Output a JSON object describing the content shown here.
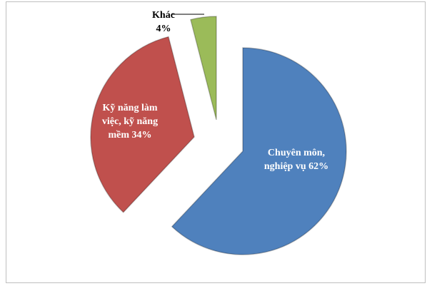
{
  "chart_data": {
    "type": "pie",
    "categories": [
      "Chuyên môn, nghiệp vụ",
      "Kỹ năng làm việc, kỹ năng mềm",
      "Khác"
    ],
    "values": [
      62,
      34,
      4
    ],
    "value_labels": [
      "62%",
      "34%",
      "4%"
    ],
    "colors": [
      "#4f81bd",
      "#c0504d",
      "#9bbb59"
    ]
  }
}
